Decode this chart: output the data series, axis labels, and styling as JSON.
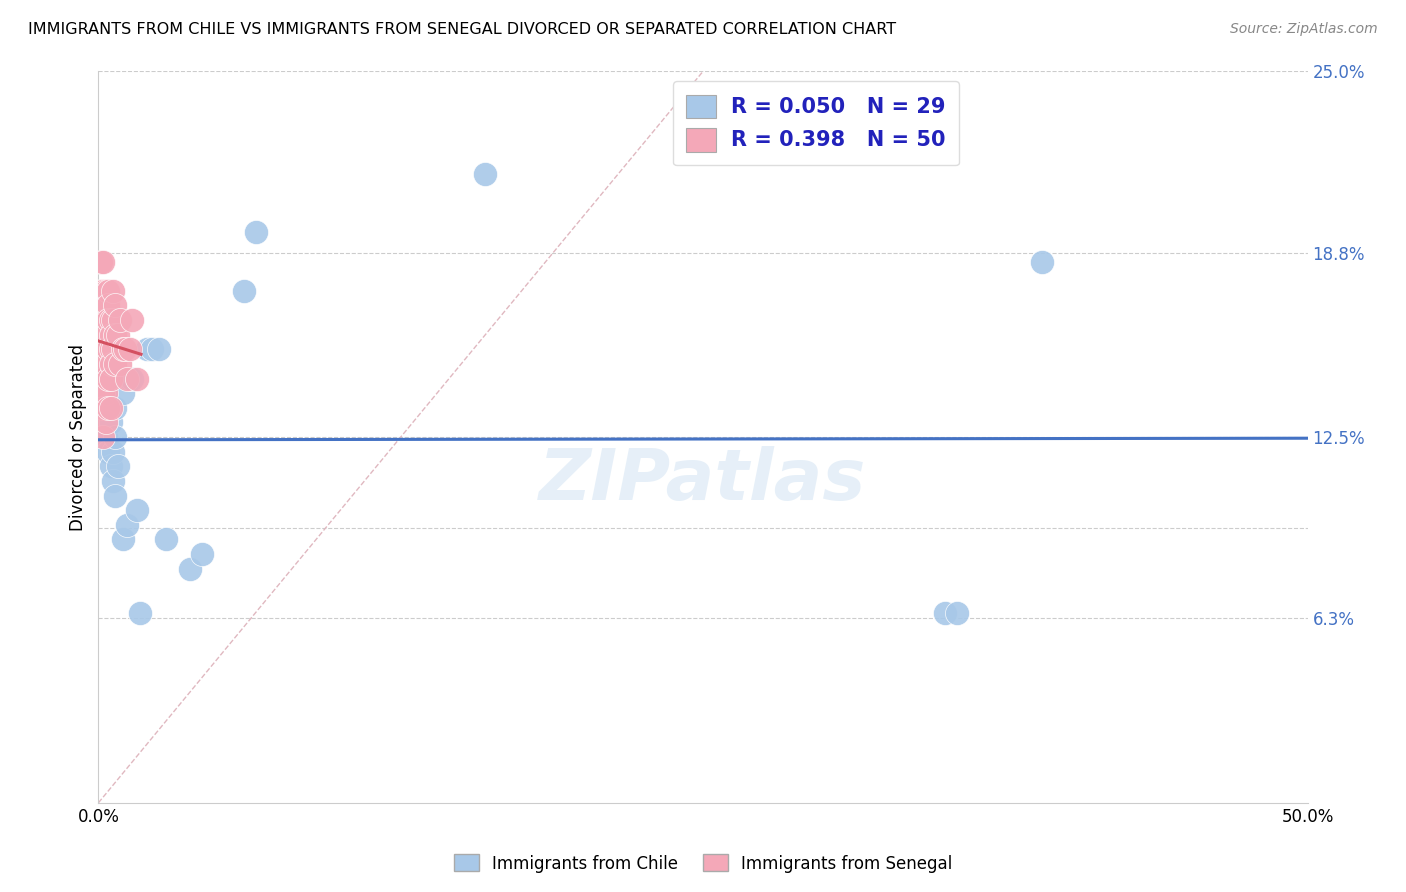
{
  "title": "IMMIGRANTS FROM CHILE VS IMMIGRANTS FROM SENEGAL DIVORCED OR SEPARATED CORRELATION CHART",
  "source": "Source: ZipAtlas.com",
  "ylabel": "Divorced or Separated",
  "xlim": [
    0.0,
    0.5
  ],
  "ylim": [
    0.0,
    0.25
  ],
  "watermark": "ZIPatlas",
  "legend_r1": "0.050",
  "legend_n1": "29",
  "legend_r2": "0.398",
  "legend_n2": "50",
  "color_chile": "#a8c8e8",
  "color_senegal": "#f4a8b8",
  "color_chile_line": "#4472c4",
  "color_senegal_line": "#d45060",
  "color_diagonal": "#d0d0d0",
  "chile_x": [
    0.003,
    0.004,
    0.005,
    0.005,
    0.006,
    0.006,
    0.007,
    0.007,
    0.007,
    0.008,
    0.01,
    0.01,
    0.012,
    0.013,
    0.014,
    0.016,
    0.017,
    0.02,
    0.022,
    0.025,
    0.028,
    0.038,
    0.043,
    0.06,
    0.065,
    0.35,
    0.355,
    0.16,
    0.39
  ],
  "chile_y": [
    0.125,
    0.12,
    0.13,
    0.115,
    0.12,
    0.11,
    0.135,
    0.125,
    0.105,
    0.115,
    0.14,
    0.09,
    0.095,
    0.145,
    0.145,
    0.1,
    0.065,
    0.155,
    0.155,
    0.155,
    0.09,
    0.08,
    0.085,
    0.175,
    0.195,
    0.065,
    0.065,
    0.215,
    0.185
  ],
  "senegal_x": [
    0.001,
    0.001,
    0.001,
    0.001,
    0.001,
    0.002,
    0.002,
    0.002,
    0.002,
    0.002,
    0.002,
    0.002,
    0.002,
    0.002,
    0.002,
    0.003,
    0.003,
    0.003,
    0.003,
    0.003,
    0.003,
    0.003,
    0.003,
    0.004,
    0.004,
    0.004,
    0.004,
    0.004,
    0.004,
    0.005,
    0.005,
    0.005,
    0.005,
    0.005,
    0.005,
    0.006,
    0.006,
    0.006,
    0.007,
    0.007,
    0.007,
    0.008,
    0.009,
    0.009,
    0.01,
    0.011,
    0.012,
    0.013,
    0.014,
    0.016
  ],
  "senegal_y": [
    0.185,
    0.175,
    0.165,
    0.155,
    0.145,
    0.185,
    0.175,
    0.165,
    0.16,
    0.155,
    0.15,
    0.145,
    0.14,
    0.135,
    0.125,
    0.175,
    0.17,
    0.165,
    0.16,
    0.155,
    0.15,
    0.14,
    0.13,
    0.175,
    0.17,
    0.165,
    0.155,
    0.145,
    0.135,
    0.165,
    0.16,
    0.155,
    0.15,
    0.145,
    0.135,
    0.175,
    0.165,
    0.155,
    0.17,
    0.16,
    0.15,
    0.16,
    0.165,
    0.15,
    0.155,
    0.155,
    0.145,
    0.155,
    0.165,
    0.145
  ],
  "ytick_vals": [
    0.063,
    0.125,
    0.188,
    0.25
  ],
  "ytick_labs": [
    "6.3%",
    "12.5%",
    "18.8%",
    "25.0%"
  ]
}
